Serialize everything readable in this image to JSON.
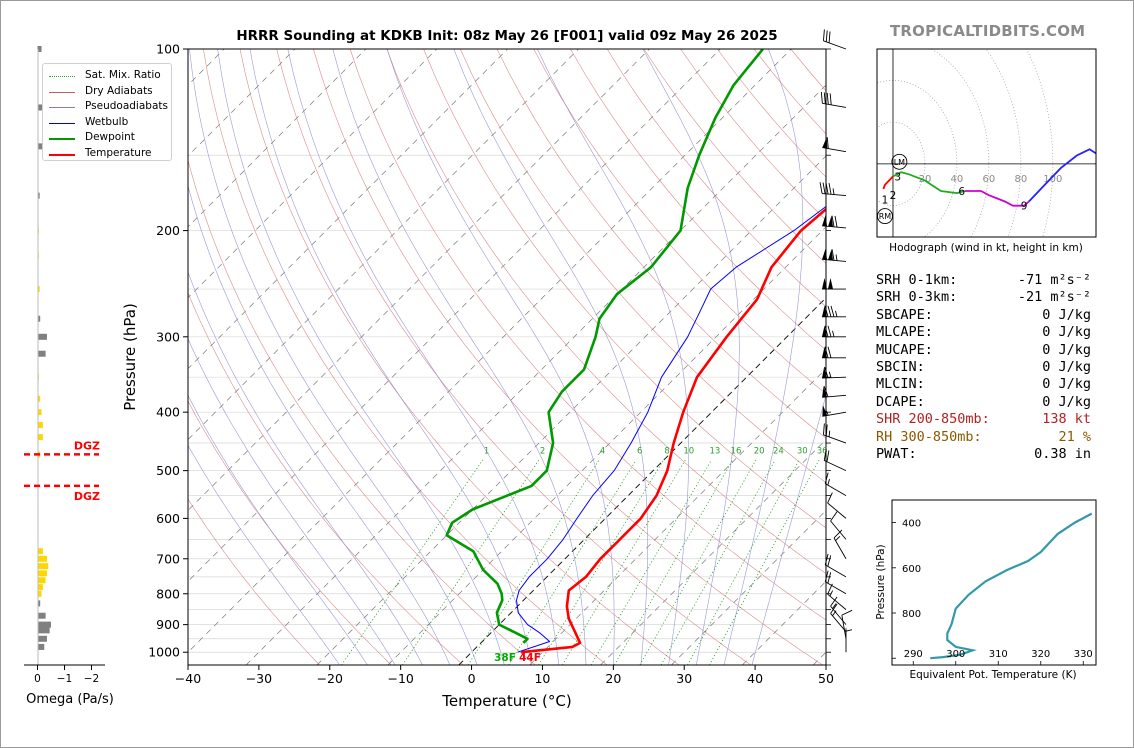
{
  "page_title": "HRRR Sounding at KDKB Init: 08z May 26 [F001] valid 09z May 26 2025",
  "site_title": "TROPICALTIDBITS.COM",
  "skewt": {
    "xlabel": "Temperature (°C)",
    "ylabel": "Pressure (hPa)",
    "x_ticks": [
      "−40",
      "−30",
      "−20",
      "−10",
      "0",
      "10",
      "20",
      "30",
      "40",
      "50"
    ],
    "y_ticks": [
      "100",
      "200",
      "300",
      "400",
      "500",
      "600",
      "700",
      "800",
      "900",
      "1000"
    ],
    "mixing_ratio_labels": [
      "1",
      "2",
      "4",
      "6",
      "8",
      "10",
      "13",
      "16",
      "20",
      "24",
      "30",
      "36"
    ],
    "surface_dewpoint_label": "38F",
    "surface_temperature_label": "44F"
  },
  "legend": {
    "items": [
      {
        "label": "Sat. Mix. Ratio",
        "color": "#2ca02c",
        "style": "dotted"
      },
      {
        "label": "Dry Adiabats",
        "color": "#c06060",
        "style": "solid-thin"
      },
      {
        "label": "Pseudoadiabats",
        "color": "#8080c0",
        "style": "solid-thin"
      },
      {
        "label": "Wetbulb",
        "color": "#0000ff",
        "style": "solid"
      },
      {
        "label": "Dewpoint",
        "color": "#009900",
        "style": "solid-thick"
      },
      {
        "label": "Temperature",
        "color": "#ff0000",
        "style": "solid-thick"
      }
    ]
  },
  "omega": {
    "xlabel": "Omega (Pa/s)",
    "x_ticks": [
      "0",
      "−1",
      "−2"
    ],
    "dgz_label": "DGZ",
    "dgz_top_hpa": 530,
    "dgz_bottom_hpa": 470
  },
  "hodograph": {
    "caption": "Hodograph (wind in kt, height in km)",
    "ring_labels": [
      "20",
      "40",
      "60",
      "80",
      "100"
    ],
    "height_labels": [
      "1",
      "2",
      "3",
      "6",
      "9"
    ],
    "storm_motion_labels": [
      "LM",
      "RM"
    ]
  },
  "stats": [
    {
      "label": "SRH 0-1km:",
      "value": "-71 m²s⁻²",
      "color": "#000000"
    },
    {
      "label": "SRH 0-3km:",
      "value": "-21 m²s⁻²",
      "color": "#000000"
    },
    {
      "label": "SBCAPE:",
      "value": "0 J/kg",
      "color": "#000000"
    },
    {
      "label": "MLCAPE:",
      "value": "0 J/kg",
      "color": "#000000"
    },
    {
      "label": "MUCAPE:",
      "value": "0 J/kg",
      "color": "#000000"
    },
    {
      "label": "SBCIN:",
      "value": "0 J/kg",
      "color": "#000000"
    },
    {
      "label": "MLCIN:",
      "value": "0 J/kg",
      "color": "#000000"
    },
    {
      "label": "DCAPE:",
      "value": "0 J/kg",
      "color": "#000000"
    },
    {
      "label": "SHR 200-850mb:",
      "value": "138 kt",
      "color": "#b22222"
    },
    {
      "label": "RH 300-850mb:",
      "value": "21 %",
      "color": "#8b5a00"
    },
    {
      "label": "PWAT:",
      "value": "0.38 in",
      "color": "#000000"
    }
  ],
  "theta_e_panel": {
    "xlabel": "Equivalent Pot. Temperature (K)",
    "ylabel": "Pressure (hPa)",
    "x_ticks": [
      "290",
      "300",
      "310",
      "320",
      "330"
    ],
    "y_ticks": [
      "400",
      "600",
      "800"
    ]
  },
  "chart_data": [
    {
      "type": "line",
      "title": "HRRR Sounding at KDKB Init: 08z May 26 [F001] valid 09z May 26 2025",
      "xlabel": "Temperature (°C)",
      "ylabel": "Pressure (hPa)",
      "xlim": [
        -40,
        50
      ],
      "ylim": [
        1050,
        100
      ],
      "y_scale": "log",
      "skew": "skew-T",
      "grid": true,
      "legend_position": "upper-left",
      "series": [
        {
          "name": "Temperature",
          "color": "#ff0000",
          "points": [
            [
              7,
              1000
            ],
            [
              13.5,
              980
            ],
            [
              14,
              965
            ],
            [
              12,
              930
            ],
            [
              9,
              880
            ],
            [
              7,
              840
            ],
            [
              5,
              790
            ],
            [
              5.5,
              750
            ],
            [
              5,
              700
            ],
            [
              5,
              660
            ],
            [
              5,
              600
            ],
            [
              4,
              550
            ],
            [
              2,
              500
            ],
            [
              -1,
              450
            ],
            [
              -4,
              400
            ],
            [
              -7,
              350
            ],
            [
              -8.5,
              300
            ],
            [
              -9.5,
              260
            ],
            [
              -12,
              230
            ],
            [
              -13,
              200
            ],
            [
              -12,
              170
            ],
            [
              -9,
              140
            ],
            [
              -6,
              125
            ],
            [
              -3,
              110
            ],
            [
              -1,
              100
            ]
          ]
        },
        {
          "name": "Dewpoint",
          "color": "#009900",
          "points": [
            [
              6,
              965
            ],
            [
              6,
              960
            ],
            [
              6,
              950
            ],
            [
              0,
              900
            ],
            [
              -2,
              860
            ],
            [
              -3,
              820
            ],
            [
              -4,
              800
            ],
            [
              -6,
              770
            ],
            [
              -10,
              730
            ],
            [
              -14,
              680
            ],
            [
              -20,
              640
            ],
            [
              -21,
              610
            ],
            [
              -20,
              580
            ],
            [
              -15,
              530
            ],
            [
              -15,
              500
            ],
            [
              -18,
              450
            ],
            [
              -23,
              400
            ],
            [
              -24,
              370
            ],
            [
              -24,
              340
            ],
            [
              -27,
              300
            ],
            [
              -29,
              280
            ],
            [
              -30,
              255
            ],
            [
              -29,
              230
            ],
            [
              -30,
              200
            ],
            [
              -35,
              170
            ],
            [
              -38,
              150
            ],
            [
              -41,
              130
            ],
            [
              -43,
              115
            ],
            [
              -44,
              100
            ]
          ]
        },
        {
          "name": "Wetbulb",
          "color": "#0000ff",
          "points": [
            [
              6.5,
              1000
            ],
            [
              8,
              980
            ],
            [
              9.5,
              960
            ],
            [
              7,
              930
            ],
            [
              4,
              900
            ],
            [
              1,
              860
            ],
            [
              -1,
              820
            ],
            [
              -2,
              790
            ],
            [
              -2.5,
              750
            ],
            [
              -2.5,
              700
            ],
            [
              -3,
              650
            ],
            [
              -4,
              600
            ],
            [
              -5,
              550
            ],
            [
              -5.5,
              500
            ],
            [
              -7,
              450
            ],
            [
              -9,
              400
            ],
            [
              -12,
              350
            ],
            [
              -14,
              300
            ],
            [
              -16,
              270
            ],
            [
              -17.5,
              250
            ],
            [
              -17,
              230
            ],
            [
              -14,
              200
            ],
            [
              -12,
              170
            ],
            [
              -9,
              140
            ],
            [
              -6,
              125
            ],
            [
              -3,
              110
            ],
            [
              -1,
              100
            ]
          ]
        }
      ]
    },
    {
      "type": "line",
      "title": "",
      "xlabel": "Equivalent Pot. Temperature (K)",
      "ylabel": "Pressure (hPa)",
      "xlim": [
        285,
        333
      ],
      "ylim": [
        1030,
        300
      ],
      "grid": false,
      "series": [
        {
          "name": "",
          "color": "#3399aa",
          "points": [
            [
              294,
              1000
            ],
            [
              297,
              995
            ],
            [
              301,
              985
            ],
            [
              304,
              965
            ],
            [
              300,
              950
            ],
            [
              298,
              920
            ],
            [
              298,
              890
            ],
            [
              299,
              850
            ],
            [
              300,
              780
            ],
            [
              303,
              720
            ],
            [
              307,
              660
            ],
            [
              312,
              610
            ],
            [
              317,
              570
            ],
            [
              320,
              530
            ],
            [
              322,
              490
            ],
            [
              324,
              450
            ],
            [
              328,
              400
            ],
            [
              332,
              360
            ]
          ]
        }
      ]
    },
    {
      "type": "line",
      "title": "",
      "xlabel": "",
      "ylabel": "",
      "xlim": [
        -10,
        127
      ],
      "ylim": [
        -35,
        55
      ],
      "rings": [
        20,
        40,
        60,
        80,
        100
      ],
      "series": [
        {
          "name": "",
          "color": "#ff0000",
          "points": [
            [
              -6,
              -12
            ],
            [
              -5,
              -10
            ],
            [
              0,
              -6
            ]
          ]
        },
        {
          "name": "",
          "color": "#22aa22",
          "points": [
            [
              0,
              -6
            ],
            [
              5,
              -4
            ],
            [
              10,
              -5
            ],
            [
              20,
              -8
            ],
            [
              30,
              -13
            ],
            [
              40,
              -14
            ],
            [
              45,
              -13
            ]
          ]
        },
        {
          "name": "",
          "color": "#cc00cc",
          "points": [
            [
              45,
              -13
            ],
            [
              55,
              -13
            ],
            [
              60,
              -15
            ],
            [
              70,
              -18
            ],
            [
              75,
              -20
            ],
            [
              82,
              -20
            ],
            [
              85,
              -18
            ]
          ]
        },
        {
          "name": "",
          "color": "#2222ff",
          "points": [
            [
              85,
              -18
            ],
            [
              95,
              -10
            ],
            [
              105,
              -2
            ],
            [
              115,
              4
            ],
            [
              123,
              7
            ],
            [
              127,
              5
            ]
          ]
        }
      ],
      "height_marks": [
        {
          "label": "1",
          "u": -5,
          "v": -17
        },
        {
          "label": "2",
          "u": 0,
          "v": -15
        },
        {
          "label": "3",
          "u": 3,
          "v": -6
        },
        {
          "label": "6",
          "u": 43,
          "v": -13
        },
        {
          "label": "9",
          "u": 82,
          "v": -20
        }
      ],
      "storm_motion": [
        {
          "label": "LM",
          "u": 4,
          "v": 1
        },
        {
          "label": "RM",
          "u": -5,
          "v": -25
        }
      ]
    },
    {
      "type": "bar",
      "title": "",
      "xlabel": "Omega (Pa/s)",
      "ylabel": "",
      "xlim": [
        0.5,
        -2.5
      ],
      "ylim": [
        1050,
        100
      ],
      "bars": [
        {
          "p": 100,
          "value": -0.15,
          "color": "#808080"
        },
        {
          "p": 125,
          "value": -0.3,
          "color": "#808080"
        },
        {
          "p": 145,
          "value": -0.2,
          "color": "#808080"
        },
        {
          "p": 175,
          "value": -0.08,
          "color": "#808080"
        },
        {
          "p": 200,
          "value": -0.05,
          "color": "#ffd700"
        },
        {
          "p": 220,
          "value": -0.05,
          "color": "#ffd700"
        },
        {
          "p": 250,
          "value": -0.08,
          "color": "#ffd700"
        },
        {
          "p": 280,
          "value": -0.1,
          "color": "#808080"
        },
        {
          "p": 300,
          "value": -0.35,
          "color": "#808080"
        },
        {
          "p": 320,
          "value": -0.3,
          "color": "#808080"
        },
        {
          "p": 350,
          "value": -0.05,
          "color": "#ffd700"
        },
        {
          "p": 380,
          "value": -0.1,
          "color": "#ffd700"
        },
        {
          "p": 400,
          "value": -0.15,
          "color": "#ffd700"
        },
        {
          "p": 420,
          "value": -0.2,
          "color": "#ffd700"
        },
        {
          "p": 440,
          "value": -0.2,
          "color": "#ffd700"
        },
        {
          "p": 470,
          "value": -0.1,
          "color": "#ffd700"
        },
        {
          "p": 680,
          "value": -0.2,
          "color": "#ffd700"
        },
        {
          "p": 700,
          "value": -0.35,
          "color": "#ffd700"
        },
        {
          "p": 720,
          "value": -0.4,
          "color": "#ffd700"
        },
        {
          "p": 740,
          "value": -0.35,
          "color": "#ffd700"
        },
        {
          "p": 760,
          "value": -0.3,
          "color": "#ffd700"
        },
        {
          "p": 780,
          "value": -0.2,
          "color": "#ffd700"
        },
        {
          "p": 800,
          "value": -0.15,
          "color": "#ffd700"
        },
        {
          "p": 830,
          "value": -0.1,
          "color": "#808080"
        },
        {
          "p": 870,
          "value": -0.3,
          "color": "#808080"
        },
        {
          "p": 900,
          "value": -0.5,
          "color": "#808080"
        },
        {
          "p": 920,
          "value": -0.45,
          "color": "#808080"
        },
        {
          "p": 950,
          "value": -0.35,
          "color": "#808080"
        },
        {
          "p": 980,
          "value": -0.25,
          "color": "#808080"
        }
      ]
    },
    {
      "type": "barbs",
      "title": "",
      "series": [
        {
          "p": 100,
          "speed": 30,
          "dir": 290
        },
        {
          "p": 125,
          "speed": 40,
          "dir": 280
        },
        {
          "p": 148,
          "speed": 60,
          "dir": 280
        },
        {
          "p": 175,
          "speed": 45,
          "dir": 275
        },
        {
          "p": 198,
          "speed": 120,
          "dir": 275
        },
        {
          "p": 225,
          "speed": 115,
          "dir": 275
        },
        {
          "p": 250,
          "speed": 100,
          "dir": 270
        },
        {
          "p": 278,
          "speed": 85,
          "dir": 270
        },
        {
          "p": 300,
          "speed": 75,
          "dir": 270
        },
        {
          "p": 325,
          "speed": 70,
          "dir": 270
        },
        {
          "p": 350,
          "speed": 65,
          "dir": 268
        },
        {
          "p": 375,
          "speed": 60,
          "dir": 265
        },
        {
          "p": 400,
          "speed": 55,
          "dir": 260
        },
        {
          "p": 450,
          "speed": 25,
          "dir": 290
        },
        {
          "p": 500,
          "speed": 20,
          "dir": 295
        },
        {
          "p": 550,
          "speed": 15,
          "dir": 300
        },
        {
          "p": 600,
          "speed": 10,
          "dir": 310
        },
        {
          "p": 650,
          "speed": 10,
          "dir": 320
        },
        {
          "p": 700,
          "speed": 15,
          "dir": 330
        },
        {
          "p": 750,
          "speed": 20,
          "dir": 300
        },
        {
          "p": 800,
          "speed": 20,
          "dir": 300
        },
        {
          "p": 850,
          "speed": 15,
          "dir": 310
        },
        {
          "p": 900,
          "speed": 15,
          "dir": 320
        },
        {
          "p": 925,
          "speed": 15,
          "dir": 320
        },
        {
          "p": 950,
          "speed": 10,
          "dir": 350
        },
        {
          "p": 1000,
          "speed": 5,
          "dir": 0
        }
      ]
    }
  ]
}
